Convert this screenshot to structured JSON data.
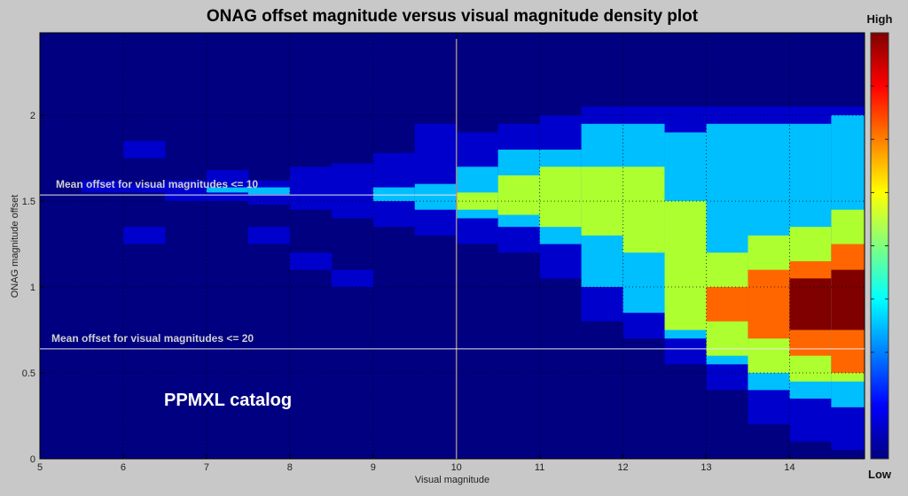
{
  "chart_data": {
    "type": "heatmap",
    "subtype": "filled-contour density",
    "title": "ONAG offset magnitude versus visual magnitude density plot",
    "xlabel": "Visual magnitude",
    "ylabel": "ONAG magnitude offset",
    "xlim": [
      5,
      14.9
    ],
    "ylim": [
      0,
      2.48
    ],
    "xticks": [
      5,
      6,
      7,
      8,
      9,
      10,
      11,
      12,
      13,
      14
    ],
    "yticks": [
      0,
      0.5,
      1,
      1.5,
      2
    ],
    "grid": true,
    "colormap": "jet",
    "colorbar": {
      "high_label": "High",
      "low_label": "Low"
    },
    "level_colors": [
      "#000080",
      "#0000cd",
      "#00bfff",
      "#adff2f",
      "#ff6600",
      "#800000"
    ],
    "columns": [
      {
        "x": [
          5,
          5.5
        ],
        "bands": []
      },
      {
        "x": [
          5.5,
          6
        ],
        "bands": [
          [
            [
              1.55,
              1.62
            ]
          ]
        ]
      },
      {
        "x": [
          6,
          6.5
        ],
        "bands": [
          [
            [
              1.55,
              1.6
            ],
            [
              1.75,
              1.85
            ],
            [
              1.25,
              1.35
            ]
          ]
        ]
      },
      {
        "x": [
          6.5,
          7
        ],
        "bands": [
          [
            [
              1.5,
              1.62
            ]
          ]
        ]
      },
      {
        "x": [
          7,
          7.5
        ],
        "bands": [
          [
            [
              1.5,
              1.68
            ]
          ],
          [
            [
              1.55,
              1.58
            ]
          ]
        ]
      },
      {
        "x": [
          7.5,
          8
        ],
        "bands": [
          [
            [
              1.48,
              1.62
            ],
            [
              1.25,
              1.35
            ]
          ],
          [
            [
              1.54,
              1.58
            ]
          ]
        ]
      },
      {
        "x": [
          8,
          8.5
        ],
        "bands": [
          [
            [
              1.45,
              1.7
            ],
            [
              1.1,
              1.2
            ]
          ]
        ]
      },
      {
        "x": [
          8.5,
          9
        ],
        "bands": [
          [
            [
              1.4,
              1.72
            ],
            [
              1.0,
              1.1
            ]
          ]
        ]
      },
      {
        "x": [
          9,
          9.5
        ],
        "bands": [
          [
            [
              1.35,
              1.78
            ]
          ],
          [
            [
              1.5,
              1.58
            ]
          ]
        ]
      },
      {
        "x": [
          9.5,
          10
        ],
        "bands": [
          [
            [
              1.3,
              1.95
            ]
          ],
          [
            [
              1.45,
              1.6
            ]
          ]
        ]
      },
      {
        "x": [
          10,
          10.5
        ],
        "bands": [
          [
            [
              1.25,
              1.9
            ]
          ],
          [
            [
              1.4,
              1.7
            ]
          ],
          [
            [
              1.45,
              1.55
            ]
          ]
        ]
      },
      {
        "x": [
          10.5,
          11
        ],
        "bands": [
          [
            [
              1.2,
              1.95
            ]
          ],
          [
            [
              1.35,
              1.8
            ]
          ],
          [
            [
              1.42,
              1.65
            ]
          ]
        ]
      },
      {
        "x": [
          11,
          11.5
        ],
        "bands": [
          [
            [
              1.05,
              2.0
            ]
          ],
          [
            [
              1.25,
              1.8
            ]
          ],
          [
            [
              1.35,
              1.7
            ]
          ]
        ]
      },
      {
        "x": [
          11.5,
          12
        ],
        "bands": [
          [
            [
              0.8,
              2.05
            ]
          ],
          [
            [
              1.0,
              1.95
            ]
          ],
          [
            [
              1.3,
              1.7
            ]
          ]
        ]
      },
      {
        "x": [
          12,
          12.5
        ],
        "bands": [
          [
            [
              0.7,
              2.05
            ]
          ],
          [
            [
              0.85,
              1.95
            ]
          ],
          [
            [
              1.2,
              1.7
            ]
          ]
        ]
      },
      {
        "x": [
          12.5,
          13
        ],
        "bands": [
          [
            [
              0.55,
              2.05
            ]
          ],
          [
            [
              0.7,
              1.9
            ]
          ],
          [
            [
              0.75,
              1.5
            ]
          ]
        ]
      },
      {
        "x": [
          13,
          13.5
        ],
        "bands": [
          [
            [
              0.4,
              2.05
            ]
          ],
          [
            [
              0.55,
              1.95
            ]
          ],
          [
            [
              0.6,
              1.2
            ]
          ],
          [
            [
              0.8,
              1.0
            ]
          ]
        ]
      },
      {
        "x": [
          13.5,
          14
        ],
        "bands": [
          [
            [
              0.2,
              2.05
            ]
          ],
          [
            [
              0.4,
              1.95
            ]
          ],
          [
            [
              0.5,
              1.3
            ]
          ],
          [
            [
              0.7,
              1.1
            ]
          ]
        ]
      },
      {
        "x": [
          14,
          14.5
        ],
        "bands": [
          [
            [
              0.1,
              2.05
            ]
          ],
          [
            [
              0.35,
              1.95
            ]
          ],
          [
            [
              0.45,
              1.35
            ]
          ],
          [
            [
              0.6,
              1.15
            ]
          ],
          [
            [
              0.75,
              1.05
            ]
          ]
        ]
      },
      {
        "x": [
          14.5,
          15
        ],
        "bands": [
          [
            [
              0.05,
              2.05
            ]
          ],
          [
            [
              0.3,
              2.0
            ]
          ],
          [
            [
              0.45,
              1.45
            ]
          ],
          [
            [
              0.5,
              1.25
            ]
          ],
          [
            [
              0.75,
              1.1
            ]
          ]
        ]
      }
    ],
    "annotations": {
      "mean_10": {
        "text": "Mean offset for visual magnitudes <= 10",
        "y": 1.536,
        "x_end": 10
      },
      "mean_20": {
        "text": "Mean offset for visual magnitudes <= 20",
        "y": 0.64
      },
      "catalog": "PPMXL catalog",
      "vertical_marker_x": 10
    }
  }
}
